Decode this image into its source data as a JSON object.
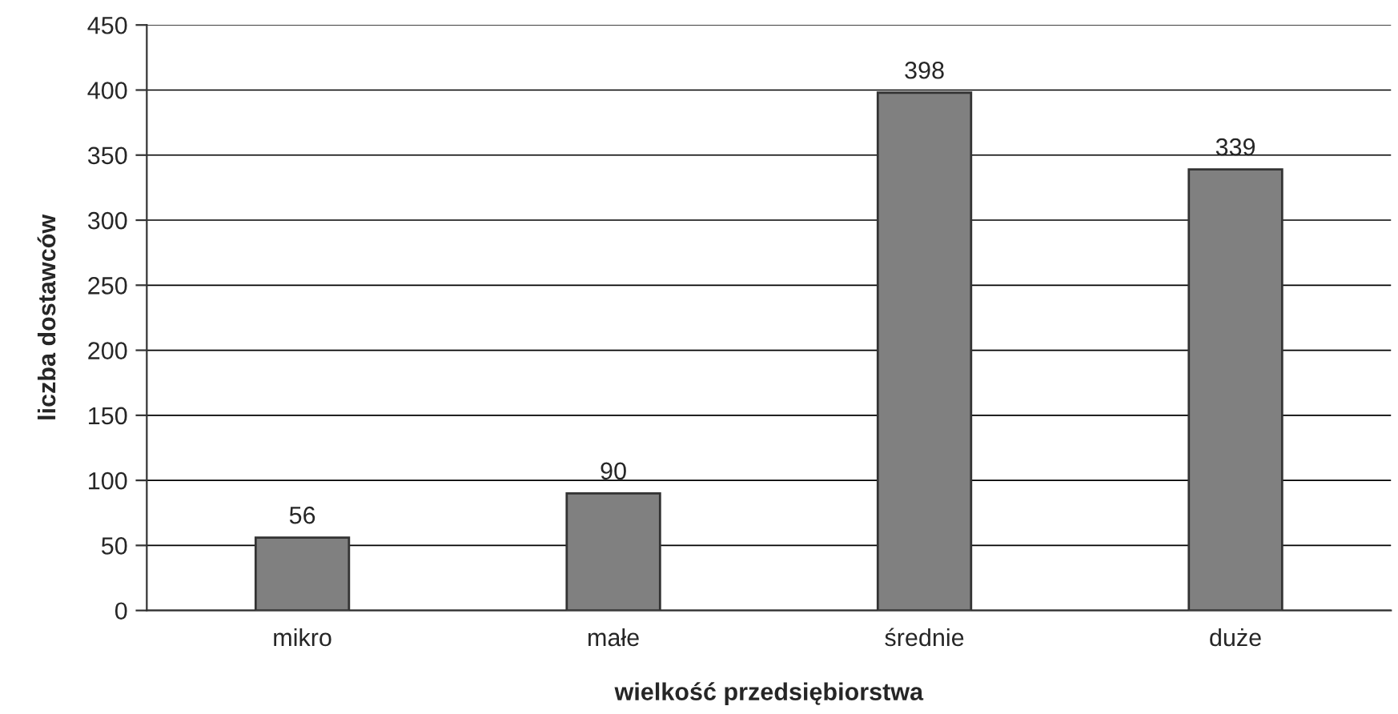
{
  "chart_data": {
    "type": "bar",
    "xlabel": "wielkość przedsiębiorstwa",
    "ylabel": "liczba dostawców",
    "categories": [
      "mikro",
      "małe",
      "średnie",
      "duże"
    ],
    "values": [
      56,
      90,
      398,
      339
    ],
    "color": "#808080",
    "ylim": [
      0,
      450
    ],
    "yticks": [
      0,
      50,
      100,
      150,
      200,
      250,
      300,
      350,
      400,
      450
    ],
    "grid": "y",
    "data_labels": true
  }
}
